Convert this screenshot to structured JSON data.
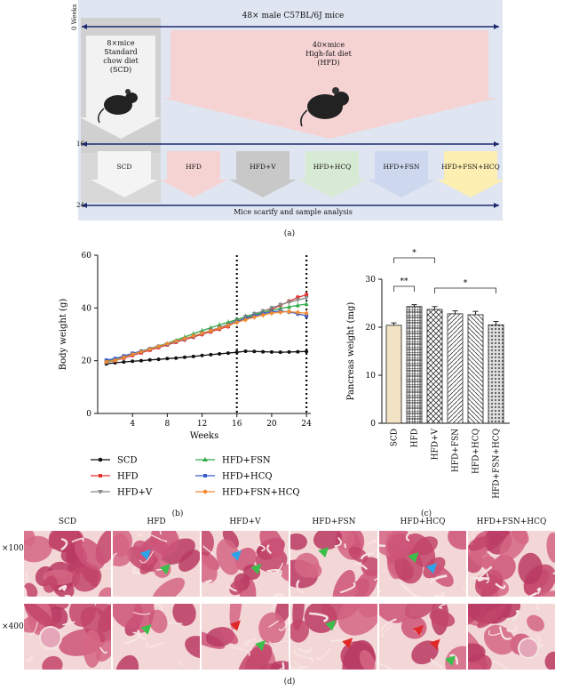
{
  "panel_a": {
    "title": "48× male C57BL/6J mice",
    "week_labels": [
      "0 Weeks",
      "16",
      "24"
    ],
    "scd_group": [
      "8×mice",
      "Standard",
      "chow diet",
      "(SCD)"
    ],
    "hfd_group": [
      "40×mice",
      "High-fat diet",
      "(HFD)"
    ],
    "groups": [
      "SCD",
      "HFD",
      "HFD+V",
      "HFD+HCQ",
      "HFD+FSN",
      "HFD+FSN+HCQ"
    ],
    "bottom_text": "Mice scarify and sample analysis",
    "caption": "(a)"
  },
  "colors": {
    "scd": "#111111",
    "hfd": "#e53030",
    "hfdv": "#8a8a8a",
    "hfdfsn": "#33aa4a",
    "hfdhcq": "#3a5cc8",
    "hfdfsnhcq": "#f28a30"
  },
  "chart_data": [
    {
      "type": "line",
      "ylabel": "Body weight (g)",
      "xlabel": "Weeks",
      "xlim": [
        0,
        24.5
      ],
      "ylim": [
        0,
        60
      ],
      "xticks": [
        "4",
        "8",
        "12",
        "16",
        "20",
        "24"
      ],
      "yticks": [
        "0",
        "20",
        "40",
        "60"
      ],
      "vlines": [
        16,
        24
      ],
      "x": [
        1,
        2,
        3,
        4,
        5,
        6,
        7,
        8,
        9,
        10,
        11,
        12,
        13,
        14,
        15,
        16,
        17,
        18,
        19,
        20,
        21,
        22,
        23,
        24
      ],
      "series": [
        {
          "name": "SCD",
          "values": [
            18.8,
            19.2,
            19.5,
            19.8,
            20.0,
            20.3,
            20.5,
            20.8,
            21.0,
            21.3,
            21.6,
            22.0,
            22.3,
            22.6,
            22.9,
            23.2,
            23.6,
            23.5,
            23.4,
            23.3,
            23.2,
            23.3,
            23.4,
            23.5
          ]
        },
        {
          "name": "HFD",
          "values": [
            19.5,
            20.0,
            21.0,
            22.0,
            23.0,
            24.0,
            25.0,
            26.0,
            27.0,
            28.0,
            29.0,
            30.0,
            31.0,
            32.0,
            33.0,
            35.0,
            36.0,
            37.0,
            38.0,
            39.5,
            41.0,
            42.5,
            44.0,
            45.0
          ]
        },
        {
          "name": "HFD+V",
          "values": [
            19.3,
            20.0,
            21.2,
            22.3,
            23.3,
            24.3,
            25.3,
            26.3,
            27.3,
            28.3,
            29.3,
            30.3,
            31.3,
            32.5,
            33.8,
            35.5,
            36.8,
            37.8,
            38.8,
            40.0,
            41.2,
            42.2,
            43.0,
            43.8
          ]
        },
        {
          "name": "HFD+FSN",
          "values": [
            19.8,
            20.4,
            21.5,
            22.6,
            23.6,
            24.6,
            25.6,
            26.6,
            27.8,
            29.0,
            30.2,
            31.4,
            32.5,
            33.6,
            34.6,
            35.6,
            36.5,
            37.4,
            38.3,
            39.0,
            39.8,
            40.4,
            41.0,
            41.5
          ]
        },
        {
          "name": "HFD+HCQ",
          "values": [
            20.2,
            20.8,
            21.8,
            22.8,
            23.6,
            24.5,
            25.4,
            26.3,
            27.3,
            28.3,
            29.3,
            30.4,
            31.5,
            32.5,
            33.5,
            34.8,
            36.0,
            37.0,
            37.8,
            38.5,
            38.8,
            38.5,
            37.8,
            37.0
          ]
        },
        {
          "name": "HFD+FSN+HCQ",
          "values": [
            19.6,
            20.2,
            21.3,
            22.4,
            23.4,
            24.4,
            25.4,
            26.4,
            27.4,
            28.4,
            29.4,
            30.4,
            31.4,
            32.4,
            33.4,
            34.5,
            35.5,
            36.5,
            37.3,
            38.0,
            38.4,
            38.6,
            38.3,
            38.0
          ]
        }
      ],
      "caption": "(b)"
    },
    {
      "type": "bar",
      "ylabel": "Pancreas weight (mg)",
      "ylim": [
        0,
        30
      ],
      "yticks": [
        "0",
        "10",
        "20",
        "30"
      ],
      "categories": [
        "SCD",
        "HFD",
        "HFD+V",
        "HFD+FSN",
        "HFD+HCQ",
        "HFD+FSN+HCQ"
      ],
      "values": [
        20.4,
        24.3,
        23.7,
        22.8,
        22.6,
        20.5
      ],
      "errors": [
        0.5,
        0.4,
        0.6,
        0.6,
        0.7,
        0.7
      ],
      "significance": [
        "*",
        "**",
        "*"
      ],
      "caption": "(c)"
    }
  ],
  "panel_d": {
    "columns": [
      "SCD",
      "HFD",
      "HFD+V",
      "HFD+FSN",
      "HFD+HCQ",
      "HFD+FSN+HCQ"
    ],
    "rows": [
      "×100",
      "×400"
    ],
    "caption": "(d)"
  }
}
